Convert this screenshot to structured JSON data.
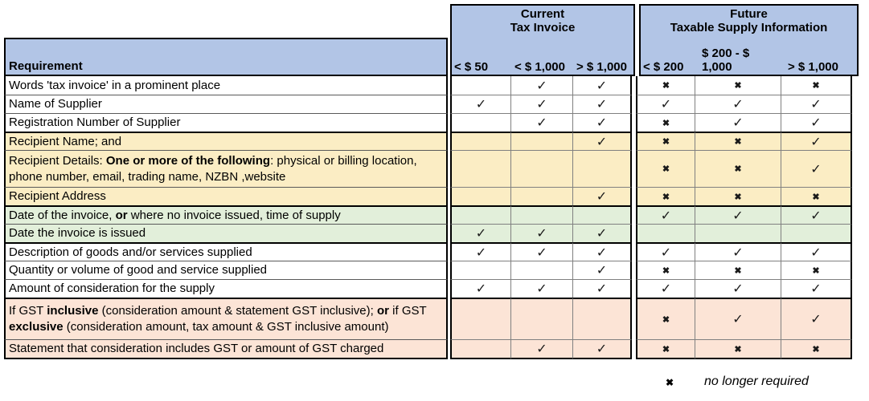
{
  "table": {
    "requirement_header": "Requirement",
    "groups": [
      {
        "title_line1": "Current",
        "title_line2": "Tax Invoice",
        "columns": [
          "< $ 50",
          "< $ 1,000",
          "> $ 1,000"
        ]
      },
      {
        "title_line1": "Future",
        "title_line2": "Taxable Supply Information",
        "columns": [
          "< $ 200",
          "$ 200 - $\n1,000",
          "> $ 1,000"
        ]
      }
    ],
    "rows": [
      {
        "color": "white",
        "segments": [
          {
            "t": "Words 'tax invoice' in a prominent place",
            "b": false
          }
        ],
        "current": [
          "",
          "check",
          "check"
        ],
        "future": [
          "x",
          "x",
          "x"
        ]
      },
      {
        "color": "white",
        "segments": [
          {
            "t": "Name of Supplier",
            "b": false
          }
        ],
        "current": [
          "check",
          "check",
          "check"
        ],
        "future": [
          "check",
          "check",
          "check"
        ]
      },
      {
        "color": "white",
        "segments": [
          {
            "t": "Registration Number of Supplier",
            "b": false
          }
        ],
        "current": [
          "",
          "check",
          "check"
        ],
        "future": [
          "x",
          "check",
          "check"
        ]
      },
      {
        "color": "yellow",
        "segments": [
          {
            "t": "Recipient Name; and",
            "b": false
          }
        ],
        "current": [
          "",
          "",
          "check"
        ],
        "future": [
          "x",
          "x",
          "check"
        ]
      },
      {
        "color": "yellow",
        "tall": "a",
        "segments": [
          {
            "t": "Recipient Details: ",
            "b": false
          },
          {
            "t": "One or more of the following",
            "b": true
          },
          {
            "t": ": physical or billing location, phone number, email, trading name, NZBN ,website",
            "b": false
          }
        ],
        "current": [
          "",
          "",
          ""
        ],
        "future": [
          "x",
          "x",
          "check"
        ]
      },
      {
        "color": "yellow",
        "segments": [
          {
            "t": "Recipient Address",
            "b": false
          }
        ],
        "current": [
          "",
          "",
          "check"
        ],
        "future": [
          "x",
          "x",
          "x"
        ]
      },
      {
        "color": "green",
        "segments": [
          {
            "t": "Date of the invoice, ",
            "b": false
          },
          {
            "t": "or",
            "b": true
          },
          {
            "t": " where no invoice issued, time of supply",
            "b": false
          }
        ],
        "current": [
          "",
          "",
          ""
        ],
        "future": [
          "check",
          "check",
          "check"
        ]
      },
      {
        "color": "green",
        "segments": [
          {
            "t": "Date the invoice is issued",
            "b": false
          }
        ],
        "current": [
          "check",
          "check",
          "check"
        ],
        "future": [
          "",
          "",
          ""
        ]
      },
      {
        "color": "white",
        "segments": [
          {
            "t": "Description of goods and/or services supplied",
            "b": false
          }
        ],
        "current": [
          "check",
          "check",
          "check"
        ],
        "future": [
          "check",
          "check",
          "check"
        ]
      },
      {
        "color": "white",
        "segments": [
          {
            "t": "Quantity or volume of good and service supplied",
            "b": false
          }
        ],
        "current": [
          "",
          "",
          "check"
        ],
        "future": [
          "x",
          "x",
          "x"
        ]
      },
      {
        "color": "white",
        "segments": [
          {
            "t": "Amount of consideration for the supply",
            "b": false
          }
        ],
        "current": [
          "check",
          "check",
          "check"
        ],
        "future": [
          "check",
          "check",
          "check"
        ]
      },
      {
        "color": "pink",
        "tall": "b",
        "segments": [
          {
            "t": "If GST ",
            "b": false
          },
          {
            "t": "inclusive",
            "b": true
          },
          {
            "t": " (consideration amount & statement GST inclusive); ",
            "b": false
          },
          {
            "t": "or",
            "b": true
          },
          {
            "t": " if GST ",
            "b": false
          },
          {
            "t": "exclusive",
            "b": true
          },
          {
            "t": " (consideration amount, tax amount & GST inclusive amount)",
            "b": false
          }
        ],
        "current": [
          "",
          "",
          ""
        ],
        "future": [
          "x",
          "check",
          "check"
        ]
      },
      {
        "color": "pink",
        "segments": [
          {
            "t": "Statement that consideration includes GST or amount of GST charged",
            "b": false
          }
        ],
        "current": [
          "",
          "check",
          "check"
        ],
        "future": [
          "x",
          "x",
          "x"
        ]
      }
    ]
  },
  "marks": {
    "check": "✓",
    "x": "✖"
  },
  "legend": {
    "symbol": "✖",
    "text": "no longer required"
  },
  "colors": {
    "header_blue": "#B2C5E6",
    "white": "#FFFFFF",
    "yellow": "#FBEDC4",
    "green": "#E2EFDA",
    "pink": "#FCE4D6"
  }
}
